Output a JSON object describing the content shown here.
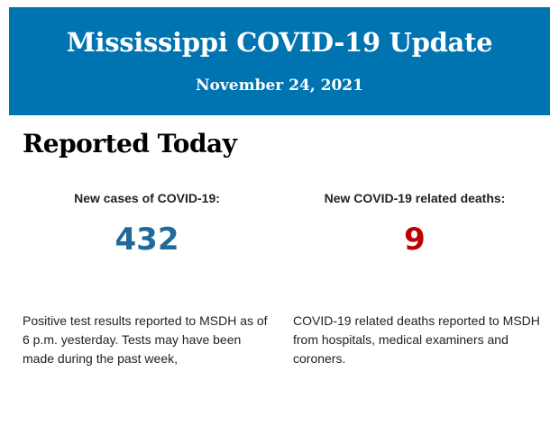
{
  "header": {
    "title": "Mississippi COVID-19 Update",
    "date": "November 24, 2021"
  },
  "section_title": "Reported Today",
  "colors": {
    "banner": "#0074b1",
    "cases": "#1f6a9a",
    "deaths": "#c00000"
  },
  "stats": [
    {
      "label": "New cases of COVID-19:",
      "value": "432",
      "description": "Positive test results reported to MSDH as of 6 p.m. yesterday. Tests may have been made during the past week,"
    },
    {
      "label": "New COVID-19 related deaths:",
      "value": "9",
      "description": "COVID-19 related deaths reported to MSDH from hospitals, medical examiners and coroners."
    }
  ]
}
